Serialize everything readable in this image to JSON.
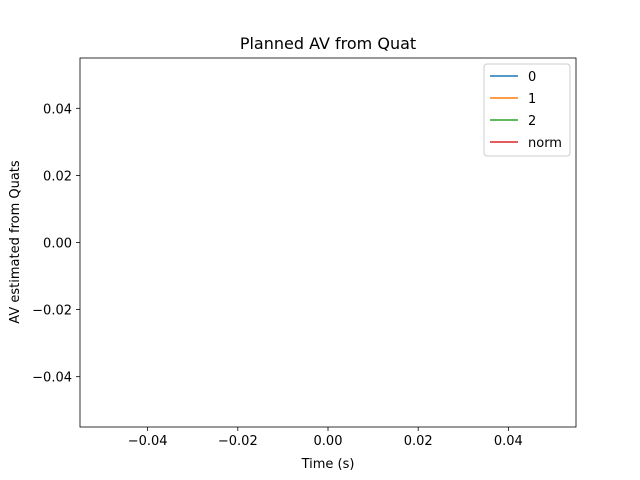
{
  "chart_data": {
    "type": "line",
    "title": "Planned AV from Quat",
    "xlabel": "Time (s)",
    "ylabel": "AV estimated from Quats",
    "xlim": [
      -0.055,
      0.055
    ],
    "ylim": [
      -0.055,
      0.055
    ],
    "xticks": [
      -0.04,
      -0.02,
      0.0,
      0.02,
      0.04
    ],
    "yticks": [
      -0.04,
      -0.02,
      0.0,
      0.02,
      0.04
    ],
    "xtick_labels": [
      "−0.04",
      "−0.02",
      "0.00",
      "0.02",
      "0.04"
    ],
    "ytick_labels": [
      "−0.04",
      "−0.02",
      "0.00",
      "0.02",
      "0.04"
    ],
    "grid": false,
    "legend_position": "upper right",
    "series": [
      {
        "name": "0",
        "color": "#1f77b4",
        "x": [],
        "y": []
      },
      {
        "name": "1",
        "color": "#ff7f0e",
        "x": [],
        "y": []
      },
      {
        "name": "2",
        "color": "#2ca02c",
        "x": [],
        "y": []
      },
      {
        "name": "norm",
        "color": "#d62728",
        "x": [],
        "y": []
      }
    ]
  }
}
